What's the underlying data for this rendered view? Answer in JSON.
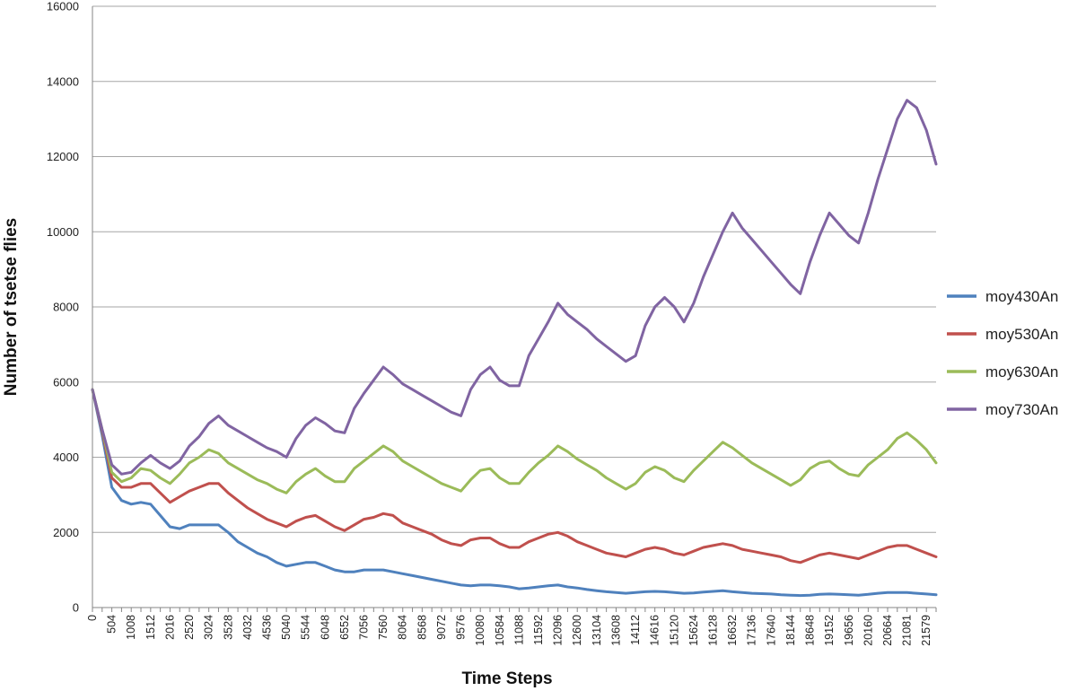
{
  "chart_data": {
    "type": "line",
    "title": "",
    "xlabel": "Time Steps",
    "ylabel": "Number of tsetse flies",
    "ylim": [
      0,
      16000
    ],
    "y_ticks": [
      0,
      2000,
      4000,
      6000,
      8000,
      10000,
      12000,
      14000,
      16000
    ],
    "x_tick_labels": [
      "0",
      "504",
      "1008",
      "1512",
      "2016",
      "2520",
      "3024",
      "3528",
      "4032",
      "4536",
      "5040",
      "5544",
      "6048",
      "6552",
      "7056",
      "7560",
      "8064",
      "8568",
      "9072",
      "9576",
      "10080",
      "10584",
      "11088",
      "11592",
      "12096",
      "12600",
      "13104",
      "13608",
      "14112",
      "14616",
      "15120",
      "15624",
      "16128",
      "16632",
      "17136",
      "17640",
      "18144",
      "18648",
      "19152",
      "19656",
      "20160",
      "20664",
      "21081",
      "21579"
    ],
    "grid": "horizontal",
    "legend_position": "right",
    "series": [
      {
        "name": "moy430An",
        "color": "#4f81bd",
        "x": [
          0,
          250,
          504,
          756,
          1008,
          1260,
          1512,
          1764,
          2016,
          2268,
          2520,
          2772,
          3024,
          3276,
          3528,
          3780,
          4032,
          4284,
          4536,
          4788,
          5040,
          5292,
          5544,
          5796,
          6048,
          6300,
          6552,
          6804,
          7056,
          7308,
          7560,
          7812,
          8064,
          8316,
          8568,
          8820,
          9072,
          9324,
          9576,
          9828,
          10080,
          10332,
          10584,
          10836,
          11088,
          11340,
          11592,
          11844,
          12096,
          12348,
          12600,
          12852,
          13104,
          13356,
          13608,
          13860,
          14112,
          14364,
          14616,
          14868,
          15120,
          15372,
          15624,
          15876,
          16128,
          16380,
          16632,
          16884,
          17136,
          17388,
          17640,
          17892,
          18144,
          18396,
          18648,
          18900,
          19152,
          19404,
          19656,
          19908,
          20160,
          20412,
          20664,
          20916,
          21168,
          21420,
          21672,
          21924
        ],
        "y": [
          5800,
          4600,
          3200,
          2850,
          2750,
          2800,
          2750,
          2450,
          2150,
          2100,
          2200,
          2200,
          2200,
          2200,
          2000,
          1750,
          1600,
          1450,
          1350,
          1200,
          1100,
          1150,
          1200,
          1200,
          1100,
          1000,
          950,
          950,
          1000,
          1000,
          1000,
          950,
          900,
          850,
          800,
          750,
          700,
          650,
          600,
          580,
          600,
          600,
          580,
          550,
          500,
          520,
          550,
          580,
          600,
          550,
          520,
          480,
          450,
          420,
          400,
          380,
          400,
          420,
          430,
          420,
          400,
          380,
          390,
          410,
          430,
          450,
          420,
          400,
          380,
          370,
          360,
          340,
          330,
          320,
          330,
          350,
          360,
          350,
          340,
          330,
          350,
          380,
          400,
          400,
          400,
          380,
          360,
          340
        ]
      },
      {
        "name": "moy530An",
        "color": "#c0504d",
        "x": [
          0,
          250,
          504,
          756,
          1008,
          1260,
          1512,
          1764,
          2016,
          2268,
          2520,
          2772,
          3024,
          3276,
          3528,
          3780,
          4032,
          4284,
          4536,
          4788,
          5040,
          5292,
          5544,
          5796,
          6048,
          6300,
          6552,
          6804,
          7056,
          7308,
          7560,
          7812,
          8064,
          8316,
          8568,
          8820,
          9072,
          9324,
          9576,
          9828,
          10080,
          10332,
          10584,
          10836,
          11088,
          11340,
          11592,
          11844,
          12096,
          12348,
          12600,
          12852,
          13104,
          13356,
          13608,
          13860,
          14112,
          14364,
          14616,
          14868,
          15120,
          15372,
          15624,
          15876,
          16128,
          16380,
          16632,
          16884,
          17136,
          17388,
          17640,
          17892,
          18144,
          18396,
          18648,
          18900,
          19152,
          19404,
          19656,
          19908,
          20160,
          20412,
          20664,
          20916,
          21168,
          21420,
          21672,
          21924
        ],
        "y": [
          5800,
          4700,
          3450,
          3200,
          3200,
          3300,
          3300,
          3050,
          2800,
          2950,
          3100,
          3200,
          3300,
          3300,
          3050,
          2850,
          2650,
          2500,
          2350,
          2250,
          2150,
          2300,
          2400,
          2450,
          2300,
          2150,
          2050,
          2200,
          2350,
          2400,
          2500,
          2450,
          2250,
          2150,
          2050,
          1950,
          1800,
          1700,
          1650,
          1800,
          1850,
          1850,
          1700,
          1600,
          1600,
          1750,
          1850,
          1950,
          2000,
          1900,
          1750,
          1650,
          1550,
          1450,
          1400,
          1350,
          1450,
          1550,
          1600,
          1550,
          1450,
          1400,
          1500,
          1600,
          1650,
          1700,
          1650,
          1550,
          1500,
          1450,
          1400,
          1350,
          1250,
          1200,
          1300,
          1400,
          1450,
          1400,
          1350,
          1300,
          1400,
          1500,
          1600,
          1650,
          1650,
          1550,
          1450,
          1350
        ]
      },
      {
        "name": "moy630An",
        "color": "#9bbb59",
        "x": [
          0,
          250,
          504,
          756,
          1008,
          1260,
          1512,
          1764,
          2016,
          2268,
          2520,
          2772,
          3024,
          3276,
          3528,
          3780,
          4032,
          4284,
          4536,
          4788,
          5040,
          5292,
          5544,
          5796,
          6048,
          6300,
          6552,
          6804,
          7056,
          7308,
          7560,
          7812,
          8064,
          8316,
          8568,
          8820,
          9072,
          9324,
          9576,
          9828,
          10080,
          10332,
          10584,
          10836,
          11088,
          11340,
          11592,
          11844,
          12096,
          12348,
          12600,
          12852,
          13104,
          13356,
          13608,
          13860,
          14112,
          14364,
          14616,
          14868,
          15120,
          15372,
          15624,
          15876,
          16128,
          16380,
          16632,
          16884,
          17136,
          17388,
          17640,
          17892,
          18144,
          18396,
          18648,
          18900,
          19152,
          19404,
          19656,
          19908,
          20160,
          20412,
          20664,
          20916,
          21168,
          21420,
          21672,
          21924
        ],
        "y": [
          5800,
          4750,
          3600,
          3350,
          3450,
          3700,
          3650,
          3450,
          3300,
          3550,
          3850,
          4000,
          4200,
          4100,
          3850,
          3700,
          3550,
          3400,
          3300,
          3150,
          3050,
          3350,
          3550,
          3700,
          3500,
          3350,
          3350,
          3700,
          3900,
          4100,
          4300,
          4150,
          3900,
          3750,
          3600,
          3450,
          3300,
          3200,
          3100,
          3400,
          3650,
          3700,
          3450,
          3300,
          3300,
          3600,
          3850,
          4050,
          4300,
          4150,
          3950,
          3800,
          3650,
          3450,
          3300,
          3150,
          3300,
          3600,
          3750,
          3650,
          3450,
          3350,
          3650,
          3900,
          4150,
          4400,
          4250,
          4050,
          3850,
          3700,
          3550,
          3400,
          3250,
          3400,
          3700,
          3850,
          3900,
          3700,
          3550,
          3500,
          3800,
          4000,
          4200,
          4500,
          4650,
          4450,
          4200,
          3850
        ]
      },
      {
        "name": "moy730An",
        "color": "#8064a2",
        "x": [
          0,
          250,
          504,
          756,
          1008,
          1260,
          1512,
          1764,
          2016,
          2268,
          2520,
          2772,
          3024,
          3276,
          3528,
          3780,
          4032,
          4284,
          4536,
          4788,
          5040,
          5292,
          5544,
          5796,
          6048,
          6300,
          6552,
          6804,
          7056,
          7308,
          7560,
          7812,
          8064,
          8316,
          8568,
          8820,
          9072,
          9324,
          9576,
          9828,
          10080,
          10332,
          10584,
          10836,
          11088,
          11340,
          11592,
          11844,
          12096,
          12348,
          12600,
          12852,
          13104,
          13356,
          13608,
          13860,
          14112,
          14364,
          14616,
          14868,
          15120,
          15372,
          15624,
          15876,
          16128,
          16380,
          16632,
          16884,
          17136,
          17388,
          17640,
          17892,
          18144,
          18396,
          18648,
          18900,
          19152,
          19404,
          19656,
          19908,
          20160,
          20412,
          20664,
          20916,
          21168,
          21420,
          21672,
          21924
        ],
        "y": [
          5800,
          4750,
          3800,
          3550,
          3600,
          3850,
          4050,
          3850,
          3700,
          3900,
          4300,
          4550,
          4900,
          5100,
          4850,
          4700,
          4550,
          4400,
          4250,
          4150,
          4000,
          4500,
          4850,
          5050,
          4900,
          4700,
          4650,
          5300,
          5700,
          6050,
          6400,
          6200,
          5950,
          5800,
          5650,
          5500,
          5350,
          5200,
          5100,
          5800,
          6200,
          6400,
          6050,
          5900,
          5900,
          6700,
          7150,
          7600,
          8100,
          7800,
          7600,
          7400,
          7150,
          6950,
          6750,
          6550,
          6700,
          7500,
          8000,
          8250,
          8000,
          7600,
          8100,
          8800,
          9400,
          10000,
          10500,
          10100,
          9800,
          9500,
          9200,
          8900,
          8600,
          8350,
          9200,
          9900,
          10500,
          10200,
          9900,
          9700,
          10500,
          11400,
          12200,
          13000,
          13500,
          13300,
          12700,
          11800
        ]
      }
    ]
  }
}
